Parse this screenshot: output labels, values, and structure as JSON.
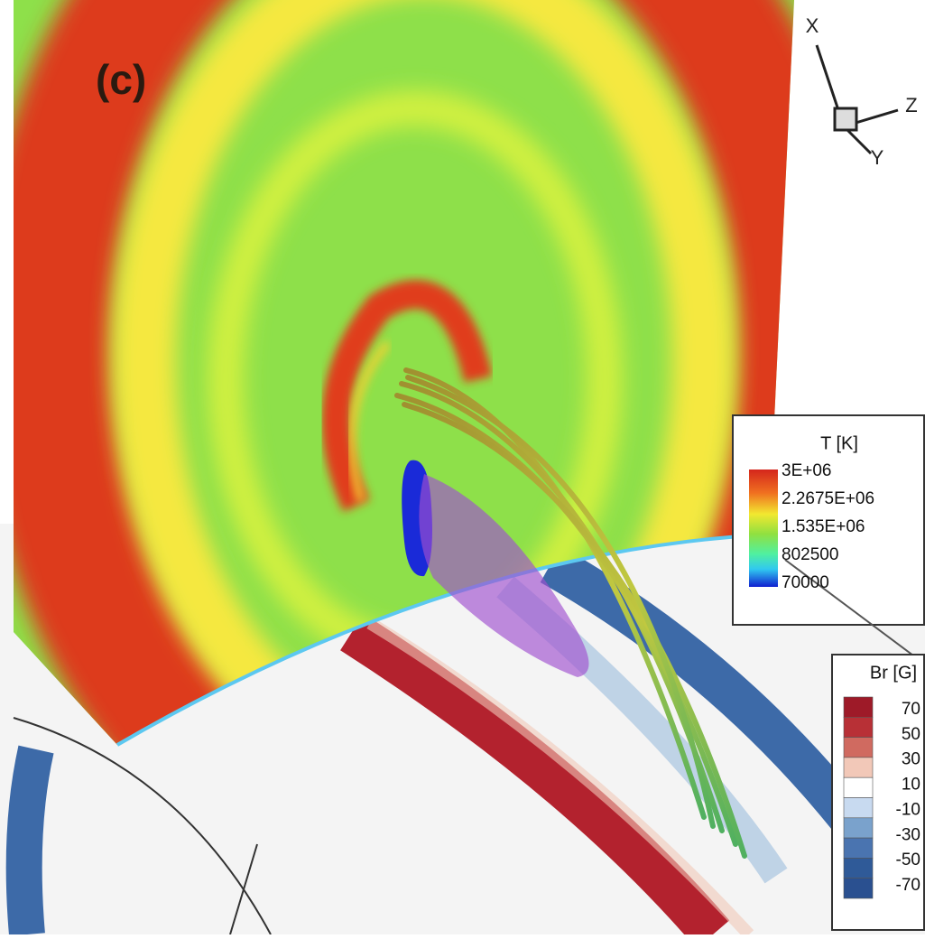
{
  "panel_label": "(c)",
  "axes": {
    "x": "X",
    "y": "Y",
    "z": "Z"
  },
  "legends": [
    {
      "title": "T [K]",
      "labels": [
        "3E+06",
        "2.2675E+06",
        "1.535E+06",
        "802500",
        "70000"
      ]
    },
    {
      "title": "Br [G]",
      "labels": [
        "70",
        "50",
        "30",
        "10",
        "-10",
        "-30",
        "-50",
        "-70"
      ]
    }
  ]
}
